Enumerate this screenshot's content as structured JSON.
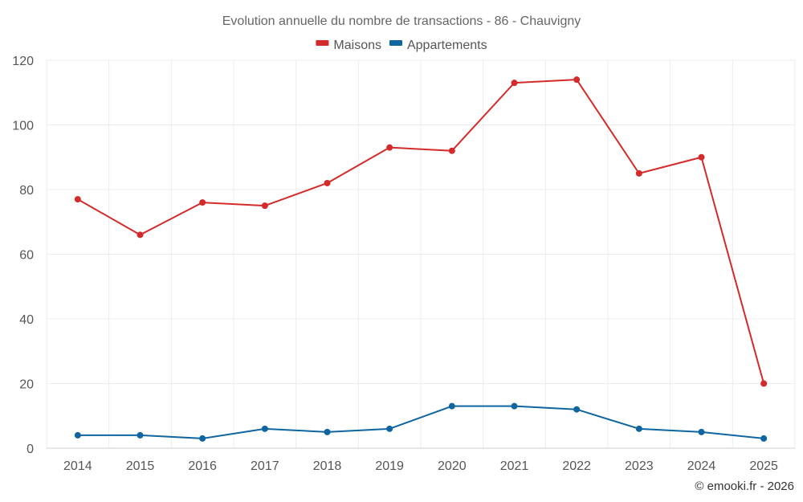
{
  "chart_data": {
    "type": "line",
    "title": "Evolution annuelle du nombre de transactions - 86 - Chauvigny",
    "categories": [
      "2014",
      "2015",
      "2016",
      "2017",
      "2018",
      "2019",
      "2020",
      "2021",
      "2022",
      "2023",
      "2024",
      "2025"
    ],
    "series": [
      {
        "name": "Maisons",
        "color": "#d42a2a",
        "values": [
          77,
          66,
          76,
          75,
          82,
          93,
          92,
          113,
          114,
          85,
          90,
          20
        ]
      },
      {
        "name": "Appartements",
        "color": "#0e65a0",
        "values": [
          4,
          4,
          3,
          6,
          5,
          6,
          13,
          13,
          12,
          6,
          5,
          3
        ]
      }
    ],
    "ylim": [
      0,
      120
    ],
    "yticks": [
      "0",
      "20",
      "40",
      "60",
      "80",
      "100",
      "120"
    ],
    "xlabel": "",
    "ylabel": "",
    "grid": true,
    "legend_position": "top-center"
  },
  "credit": "© emooki.fr - 2026"
}
